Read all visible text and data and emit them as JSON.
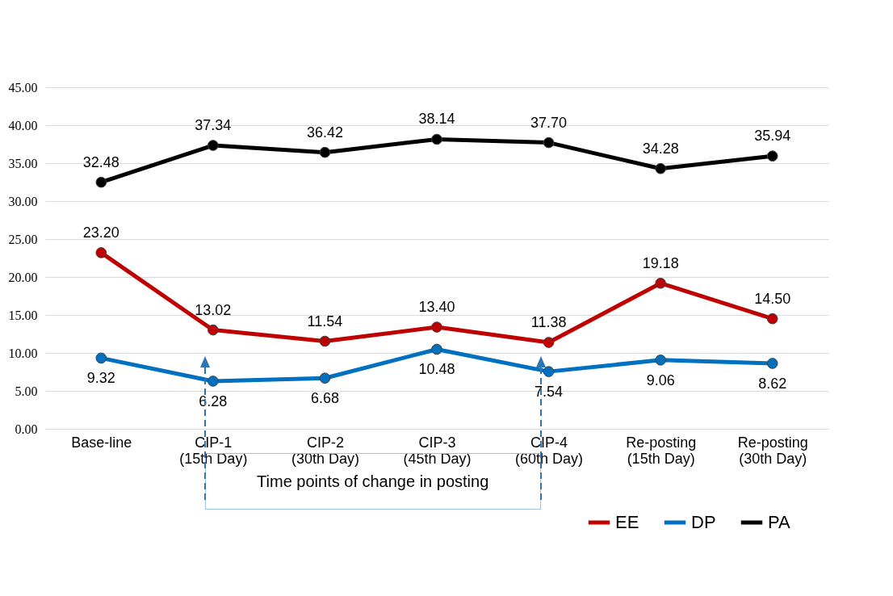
{
  "chart_data": {
    "type": "line",
    "categories": [
      "Base-line",
      "CIP-1 (15th Day)",
      "CIP-2 (30th Day)",
      "CIP-3 (45th Day)",
      "CIP-4 (60th Day)",
      "Re-posting (15th Day)",
      "Re-posting (30th Day)"
    ],
    "series": [
      {
        "name": "EE",
        "color": "#c00000",
        "values": [
          23.2,
          13.02,
          11.54,
          13.4,
          11.38,
          19.18,
          14.5
        ],
        "value_labels": [
          "23.20",
          "13.02",
          "11.54",
          "13.40",
          "11.38",
          "19.18",
          "14.50"
        ]
      },
      {
        "name": "DP",
        "color": "#0070c0",
        "values": [
          9.32,
          6.28,
          6.68,
          10.48,
          7.54,
          9.06,
          8.62
        ],
        "value_labels": [
          "9.32",
          "6.28",
          "6.68",
          "10.48",
          "7.54",
          "9.06",
          "8.62"
        ]
      },
      {
        "name": "PA",
        "color": "#000000",
        "values": [
          32.48,
          37.34,
          36.42,
          38.14,
          37.7,
          34.28,
          35.94
        ],
        "value_labels": [
          "32.48",
          "37.34",
          "36.42",
          "38.14",
          "37.70",
          "34.28",
          "35.94"
        ]
      }
    ],
    "ylim": [
      0,
      45
    ],
    "yticks": [
      {
        "value": 0,
        "label": "0.00"
      },
      {
        "value": 5,
        "label": "5.00"
      },
      {
        "value": 10,
        "label": "10.00"
      },
      {
        "value": 15,
        "label": "15.00"
      },
      {
        "value": 20,
        "label": "20.00"
      },
      {
        "value": 25,
        "label": "25.00"
      },
      {
        "value": 30,
        "label": "30.00"
      },
      {
        "value": 35,
        "label": "35.00"
      },
      {
        "value": 40,
        "label": "40.00"
      },
      {
        "value": 45,
        "label": "45.00"
      }
    ],
    "grid": "y",
    "legend": "bottom right",
    "marker": "circle",
    "line_style": "solid",
    "annotations": [
      "Time points of change in posting"
    ]
  }
}
